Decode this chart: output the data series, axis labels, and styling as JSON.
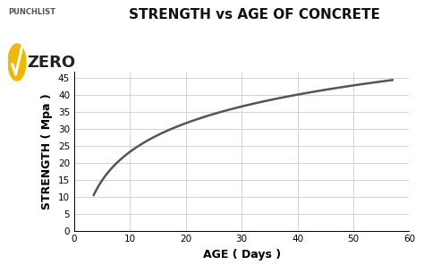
{
  "title": "STRENGTH vs AGE OF CONCRETE",
  "xlabel": "AGE ( Days )",
  "ylabel": "STRENGTH ( Mpa )",
  "xlim": [
    0,
    60
  ],
  "ylim": [
    0,
    47
  ],
  "xticks": [
    0,
    10,
    20,
    30,
    40,
    50,
    60
  ],
  "yticks": [
    0,
    5,
    10,
    15,
    20,
    25,
    30,
    35,
    40,
    45
  ],
  "curve_color": "#555555",
  "curve_linewidth": 1.8,
  "grid_color": "#cccccc",
  "bg_color": "#ffffff",
  "title_fontsize": 11,
  "axis_label_fontsize": 9,
  "tick_fontsize": 7.5,
  "logo_punchlist": "PUNCHLIST",
  "logo_zero": "ZERO",
  "logo_gold": "#f0b800",
  "logo_text_color": "#555555",
  "logo_zero_color": "#222222",
  "curve_start_x": 3.5,
  "curve_start_y": 10.5,
  "curve_end_x": 57,
  "curve_end_y": 44.5
}
